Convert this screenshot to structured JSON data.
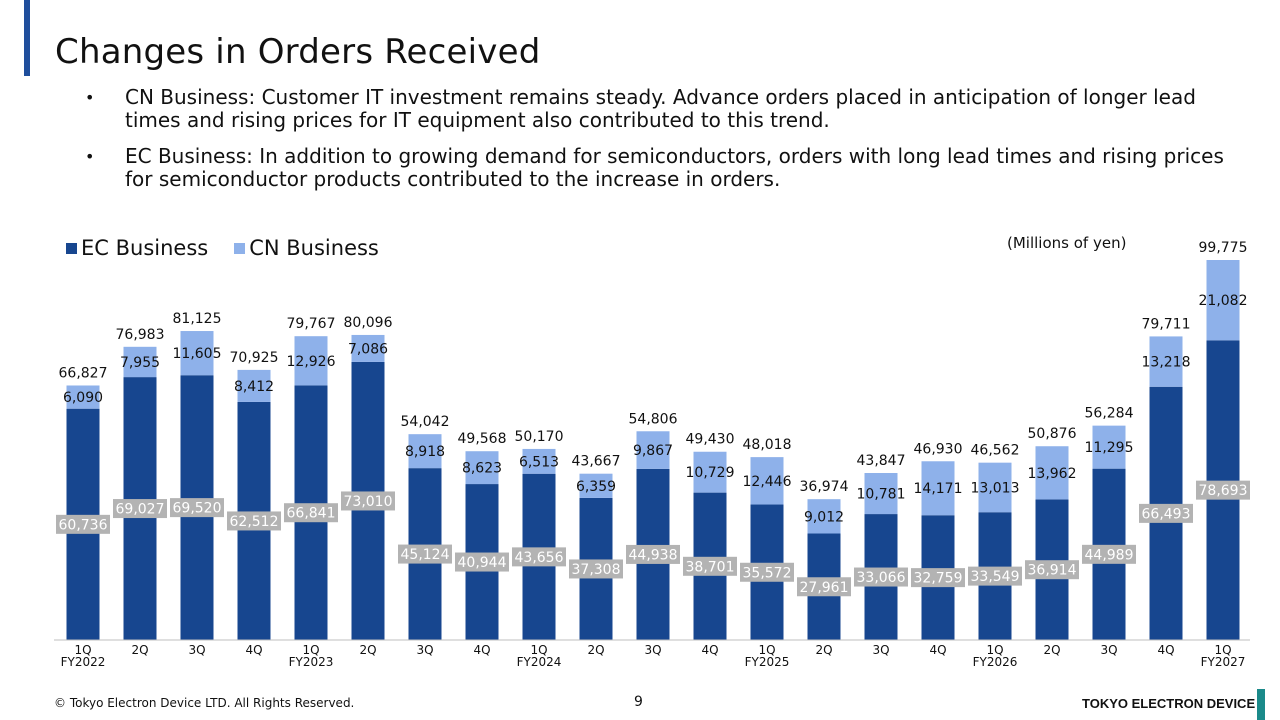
{
  "title": "Changes in Orders Received",
  "bullets": [
    "CN Business: Customer IT investment remains steady. Advance orders placed in anticipation of longer lead times and rising prices for IT equipment also contributed to this trend.",
    "EC Business: In addition to growing demand for semiconductors, orders with long lead times and rising prices for semiconductor products contributed to the increase in orders."
  ],
  "units": "(Millions of yen)",
  "footer": {
    "copyright": "© Tokyo Electron Device LTD. All Rights Reserved.",
    "page": "9",
    "company": "TOKYO ELECTRON DEVICE"
  },
  "colors": {
    "ec": "#17468f",
    "cn": "#8eb1ea",
    "label_box": "#b3b3b3"
  },
  "chart_data": {
    "type": "bar",
    "stacked": true,
    "categories": [
      "1Q",
      "2Q",
      "3Q",
      "4Q",
      "1Q",
      "2Q",
      "3Q",
      "4Q",
      "1Q",
      "2Q",
      "3Q",
      "4Q",
      "1Q",
      "2Q",
      "3Q",
      "4Q",
      "1Q",
      "2Q",
      "3Q",
      "4Q",
      "1Q"
    ],
    "fiscal_years": [
      {
        "label": "FY2022",
        "index": 0
      },
      {
        "label": "FY2023",
        "index": 4
      },
      {
        "label": "FY2024",
        "index": 8
      },
      {
        "label": "FY2025",
        "index": 12
      },
      {
        "label": "FY2026",
        "index": 16
      },
      {
        "label": "FY2027",
        "index": 20
      }
    ],
    "series": [
      {
        "name": "EC Business",
        "values": [
          60736,
          69027,
          69520,
          62512,
          66841,
          73010,
          45124,
          40944,
          43656,
          37308,
          44938,
          38701,
          35572,
          27961,
          33066,
          32759,
          33549,
          36914,
          44989,
          66493,
          78693
        ]
      },
      {
        "name": "CN Business",
        "values": [
          6090,
          7955,
          11605,
          8412,
          12926,
          7086,
          8918,
          8623,
          6513,
          6359,
          9867,
          10729,
          12446,
          9012,
          10781,
          14171,
          13013,
          13962,
          11295,
          13218,
          21082
        ]
      }
    ],
    "totals": [
      66827,
      76983,
      81125,
      70925,
      79767,
      80096,
      54042,
      49568,
      50170,
      43667,
      54806,
      49430,
      48018,
      36974,
      43847,
      46930,
      46562,
      50876,
      56284,
      79711,
      99775
    ],
    "ylim": [
      0,
      105000
    ],
    "legend": "top-left",
    "grid": false
  }
}
